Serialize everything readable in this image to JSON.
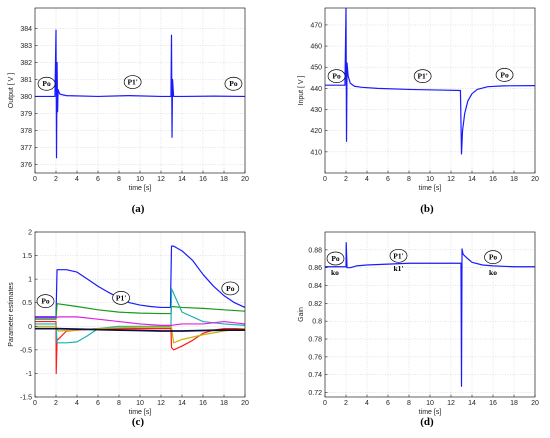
{
  "chart_data": [
    {
      "id": "a",
      "type": "line",
      "panel_label": "(a)",
      "xlabel": "time [s]",
      "ylabel": "Output [ V ]",
      "xlim": [
        0,
        20
      ],
      "ylim": [
        375.5,
        385.2
      ],
      "xticks": [
        0,
        2,
        4,
        6,
        8,
        10,
        12,
        14,
        16,
        18,
        20
      ],
      "yticks": [
        376,
        377,
        378,
        379,
        380,
        381,
        382,
        383,
        384
      ],
      "grid": true,
      "series": [
        {
          "color": "#1a1aff",
          "x": [
            0,
            1.9,
            2.0,
            2.05,
            2.1,
            2.15,
            2.2,
            2.35,
            2.6,
            3,
            6,
            9,
            12,
            12.95,
            13.0,
            13.05,
            13.1,
            13.2,
            14,
            17,
            20
          ],
          "y": [
            380.0,
            380.0,
            383.9,
            376.4,
            382.0,
            379.1,
            380.4,
            380.15,
            380.1,
            380.05,
            380.0,
            380.05,
            380.0,
            380.0,
            383.6,
            377.6,
            381.0,
            380.0,
            380.0,
            380.02,
            380.0
          ]
        }
      ],
      "annotations": [
        {
          "text": "Po",
          "x": 1.1,
          "y": 380.6
        },
        {
          "text": "P1'",
          "x": 9.3,
          "y": 380.7
        },
        {
          "text": "Po",
          "x": 18.9,
          "y": 380.6
        }
      ]
    },
    {
      "id": "b",
      "type": "line",
      "panel_label": "(b)",
      "xlabel": "time [s]",
      "ylabel": "Input [ V ]",
      "xlim": [
        0,
        20
      ],
      "ylim": [
        400,
        478
      ],
      "xticks": [
        0,
        2,
        4,
        6,
        8,
        10,
        12,
        14,
        16,
        18,
        20
      ],
      "yticks": [
        410,
        420,
        430,
        440,
        450,
        460,
        470
      ],
      "grid": true,
      "series": [
        {
          "color": "#1a1aff",
          "x": [
            0,
            1.9,
            2.0,
            2.05,
            2.1,
            2.2,
            2.4,
            2.8,
            3.5,
            5,
            8,
            11,
            12.9,
            13.0,
            13.1,
            13.3,
            13.6,
            14.0,
            14.5,
            15.5,
            17,
            20
          ],
          "y": [
            441.5,
            441.5,
            478,
            415,
            452,
            446,
            442.5,
            441,
            440.5,
            440,
            439.5,
            439.2,
            439,
            409,
            420,
            428,
            434,
            437.5,
            439.5,
            440.8,
            441.2,
            441.3
          ]
        }
      ],
      "annotations": [
        {
          "text": "Po",
          "x": 1.1,
          "y": 444.6
        },
        {
          "text": "P1'",
          "x": 9.3,
          "y": 444.6
        },
        {
          "text": "Po",
          "x": 17.1,
          "y": 445.2
        }
      ]
    },
    {
      "id": "c",
      "type": "line",
      "panel_label": "(c)",
      "xlabel": "time [s]",
      "ylabel": "Parameter estimates",
      "xlim": [
        0,
        20
      ],
      "ylim": [
        -1.5,
        2
      ],
      "xticks": [
        0,
        2,
        4,
        6,
        8,
        10,
        12,
        14,
        16,
        18,
        20
      ],
      "yticks": [
        -1.5,
        -1,
        -0.5,
        0,
        0.5,
        1,
        1.5,
        2
      ],
      "grid": true,
      "series": [
        {
          "color": "#1a1aff",
          "x": [
            0,
            2.0,
            2.1,
            3,
            4,
            5,
            6,
            7,
            8,
            9,
            10,
            11,
            12,
            12.9,
            13.0,
            13.2,
            14,
            15,
            16,
            17,
            18,
            19,
            20
          ],
          "y": [
            0.2,
            0.2,
            1.2,
            1.2,
            1.15,
            1.0,
            0.85,
            0.72,
            0.6,
            0.5,
            0.45,
            0.42,
            0.4,
            0.4,
            1.7,
            1.7,
            1.6,
            1.4,
            1.1,
            0.85,
            0.65,
            0.5,
            0.4
          ]
        },
        {
          "color": "#1a9a1a",
          "x": [
            0,
            2.0,
            2.1,
            4,
            6,
            8,
            10,
            12,
            12.95,
            13.0,
            14,
            16,
            18,
            20
          ],
          "y": [
            0.15,
            0.15,
            0.48,
            0.42,
            0.35,
            0.3,
            0.28,
            0.27,
            0.27,
            0.42,
            0.4,
            0.38,
            0.35,
            0.32
          ]
        },
        {
          "color": "#ff1a1a",
          "x": [
            0,
            2.0,
            2.02,
            2.1,
            3,
            6,
            10,
            12.95,
            13.0,
            13.2,
            14,
            15,
            16,
            17,
            18,
            20
          ],
          "y": [
            0.1,
            0.1,
            -1.0,
            -0.3,
            -0.1,
            -0.05,
            -0.05,
            -0.05,
            -0.45,
            -0.5,
            -0.42,
            -0.3,
            -0.15,
            -0.08,
            -0.05,
            -0.05
          ]
        },
        {
          "color": "#1ab0b0",
          "x": [
            0,
            2.0,
            2.1,
            3,
            4,
            5,
            6,
            8,
            10,
            12,
            12.95,
            13.0,
            14,
            16,
            18,
            20
          ],
          "y": [
            0.05,
            0.05,
            -0.35,
            -0.35,
            -0.33,
            -0.2,
            -0.05,
            0.0,
            0.0,
            0.0,
            0.0,
            0.8,
            0.3,
            0.1,
            0.05,
            0.02
          ]
        },
        {
          "color": "#e020e0",
          "x": [
            0,
            2.0,
            2.2,
            4,
            6,
            8,
            10,
            12,
            13,
            14,
            16,
            18,
            20
          ],
          "y": [
            0.18,
            0.18,
            0.2,
            0.2,
            0.15,
            0.1,
            0.05,
            0.02,
            0.02,
            0.05,
            0.05,
            0.1,
            0.05
          ]
        },
        {
          "color": "#c8b400",
          "x": [
            0,
            2.0,
            2.2,
            4,
            6,
            8,
            10,
            12,
            13,
            13.2,
            14,
            16,
            18,
            20
          ],
          "y": [
            0.0,
            0.0,
            -0.1,
            -0.08,
            -0.05,
            -0.03,
            -0.02,
            -0.02,
            -0.02,
            -0.35,
            -0.28,
            -0.18,
            -0.1,
            -0.05
          ]
        },
        {
          "color": "#101040",
          "x": [
            0,
            2,
            4,
            6,
            8,
            10,
            12,
            14,
            16,
            18,
            20
          ],
          "y": [
            -0.05,
            -0.05,
            -0.06,
            -0.07,
            -0.08,
            -0.09,
            -0.1,
            -0.1,
            -0.09,
            -0.08,
            -0.08
          ]
        }
      ],
      "annotations": [
        {
          "text": "Po",
          "x": 1.0,
          "y": 0.48
        },
        {
          "text": "P1'",
          "x": 8.2,
          "y": 0.55
        },
        {
          "text": "Po",
          "x": 18.6,
          "y": 0.75
        }
      ]
    },
    {
      "id": "d",
      "type": "line",
      "panel_label": "(d)",
      "xlabel": "time [s]",
      "ylabel": "Gain",
      "xlim": [
        0,
        20
      ],
      "ylim": [
        0.715,
        0.9
      ],
      "xticks": [
        0,
        2,
        4,
        6,
        8,
        10,
        12,
        14,
        16,
        18,
        20
      ],
      "yticks": [
        0.72,
        0.74,
        0.76,
        0.78,
        0.8,
        0.82,
        0.84,
        0.86,
        0.88
      ],
      "grid": true,
      "series": [
        {
          "color": "#1a1aff",
          "x": [
            0,
            2.0,
            2.02,
            2.1,
            2.4,
            3,
            4,
            6,
            8,
            10,
            12,
            12.95,
            13.0,
            13.05,
            13.15,
            13.5,
            14,
            15,
            16,
            18,
            20
          ],
          "y": [
            0.861,
            0.861,
            0.888,
            0.86,
            0.86,
            0.862,
            0.863,
            0.864,
            0.865,
            0.865,
            0.865,
            0.865,
            0.727,
            0.881,
            0.875,
            0.871,
            0.866,
            0.863,
            0.862,
            0.861,
            0.861
          ]
        }
      ],
      "annotations": [
        {
          "text": "Po",
          "x": 1.0,
          "y": 0.8675,
          "circled": true
        },
        {
          "text": "ko",
          "x": 0.95,
          "y": 0.852,
          "circled": false
        },
        {
          "text": "P1'",
          "x": 7.0,
          "y": 0.8705,
          "circled": true
        },
        {
          "text": "k1'",
          "x": 7.0,
          "y": 0.856,
          "circled": false
        },
        {
          "text": "Po",
          "x": 16.0,
          "y": 0.869,
          "circled": true
        },
        {
          "text": "ko",
          "x": 16.0,
          "y": 0.852,
          "circled": false
        }
      ]
    }
  ]
}
